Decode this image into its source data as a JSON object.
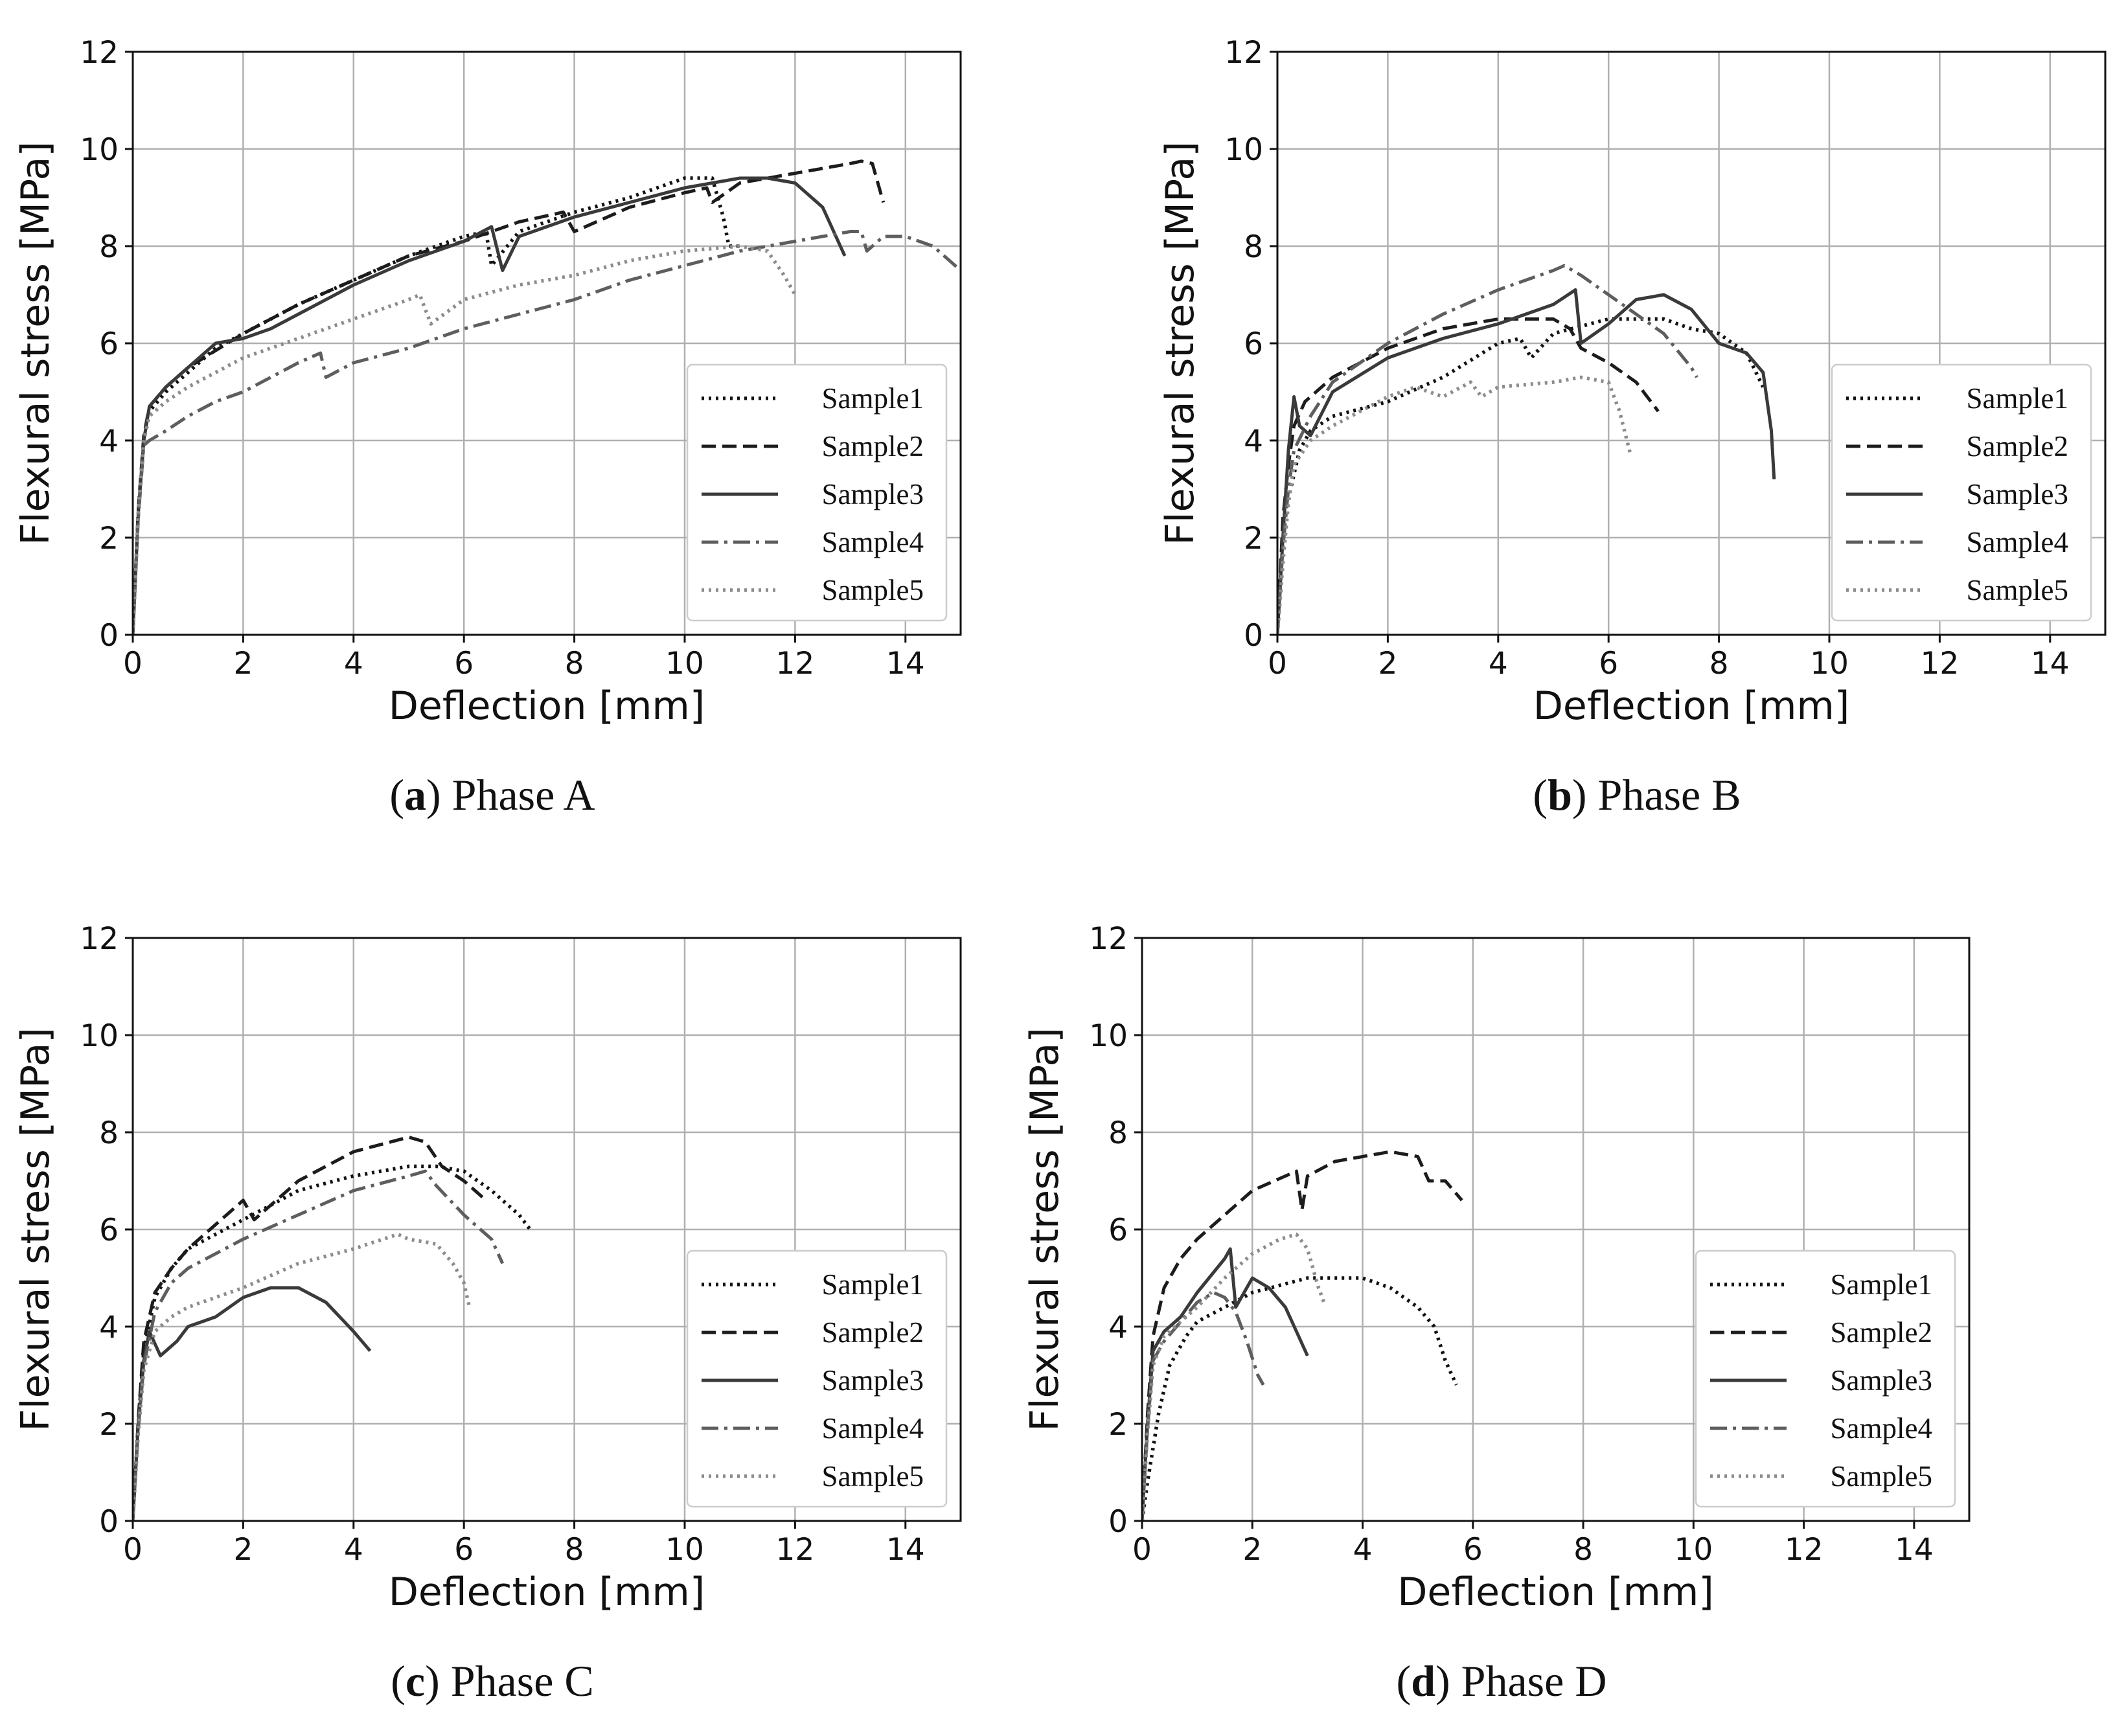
{
  "series_styles": [
    {
      "name": "Sample1",
      "color": "#111111",
      "dash": "dotted"
    },
    {
      "name": "Sample2",
      "color": "#1c1c1c",
      "dash": "dashed"
    },
    {
      "name": "Sample3",
      "color": "#3a3a3a",
      "dash": "solid"
    },
    {
      "name": "Sample4",
      "color": "#5e5e5e",
      "dash": "dashdot"
    },
    {
      "name": "Sample5",
      "color": "#8c8c8c",
      "dash": "dotted"
    }
  ],
  "chart_data": [
    {
      "type": "line",
      "caption_letter": "a",
      "caption_text": "Phase A",
      "xlabel": "Deflection [mm]",
      "ylabel": "Flexural stress [MPa]",
      "xlim": [
        0,
        15
      ],
      "ylim": [
        0,
        12
      ],
      "xticks": [
        0,
        2,
        4,
        6,
        8,
        10,
        12,
        14
      ],
      "yticks": [
        0,
        2,
        4,
        6,
        8,
        10,
        12
      ],
      "grid": true,
      "legend_position": "lower-right",
      "series": [
        {
          "name": "Sample1",
          "x": [
            0,
            0.1,
            0.2,
            0.3,
            0.6,
            1.0,
            1.5,
            2.0,
            3.0,
            4.0,
            5.0,
            6.0,
            6.4,
            6.5,
            7.0,
            8.0,
            9.0,
            10.0,
            10.5,
            10.7,
            10.8,
            11.0
          ],
          "y": [
            0,
            2.5,
            4.0,
            4.6,
            5.0,
            5.4,
            5.9,
            6.2,
            6.8,
            7.3,
            7.8,
            8.2,
            8.3,
            7.6,
            8.3,
            8.7,
            9.0,
            9.4,
            9.4,
            8.6,
            8.0,
            8.0
          ]
        },
        {
          "name": "Sample2",
          "x": [
            0,
            0.1,
            0.2,
            0.3,
            0.6,
            1.0,
            2.0,
            3.0,
            4.0,
            5.0,
            6.0,
            7.0,
            7.8,
            8.0,
            9.0,
            10.0,
            10.4,
            10.5,
            11.0,
            12.0,
            13.0,
            13.2,
            13.4,
            13.6
          ],
          "y": [
            0,
            2.6,
            4.1,
            4.7,
            5.1,
            5.5,
            6.2,
            6.8,
            7.3,
            7.8,
            8.1,
            8.5,
            8.7,
            8.3,
            8.8,
            9.1,
            9.2,
            8.9,
            9.3,
            9.5,
            9.7,
            9.75,
            9.7,
            8.9
          ]
        },
        {
          "name": "Sample3",
          "x": [
            0,
            0.1,
            0.2,
            0.3,
            0.6,
            1.0,
            1.5,
            2.0,
            2.5,
            3.0,
            4.0,
            5.0,
            6.0,
            6.5,
            6.7,
            7.0,
            8.0,
            9.0,
            10.0,
            11.0,
            11.5,
            12.0,
            12.5,
            12.9
          ],
          "y": [
            0,
            2.5,
            4.0,
            4.7,
            5.1,
            5.5,
            6.0,
            6.1,
            6.3,
            6.6,
            7.2,
            7.7,
            8.1,
            8.4,
            7.5,
            8.2,
            8.6,
            8.9,
            9.2,
            9.4,
            9.4,
            9.3,
            8.8,
            7.8
          ]
        },
        {
          "name": "Sample4",
          "x": [
            0,
            0.1,
            0.2,
            0.3,
            0.6,
            1.0,
            1.5,
            2.0,
            2.5,
            3.0,
            3.4,
            3.5,
            4.0,
            5.0,
            6.0,
            7.0,
            8.0,
            9.0,
            10.0,
            11.0,
            12.0,
            13.0,
            13.2,
            13.3,
            13.6,
            14.0,
            14.5,
            15.0
          ],
          "y": [
            0,
            2.4,
            3.9,
            4.0,
            4.2,
            4.5,
            4.8,
            5.0,
            5.3,
            5.6,
            5.8,
            5.3,
            5.6,
            5.9,
            6.3,
            6.6,
            6.9,
            7.3,
            7.6,
            7.9,
            8.1,
            8.3,
            8.3,
            7.9,
            8.2,
            8.2,
            8.0,
            7.5
          ]
        },
        {
          "name": "Sample5",
          "x": [
            0,
            0.1,
            0.2,
            0.3,
            0.6,
            1.0,
            2.0,
            3.0,
            4.0,
            5.0,
            5.2,
            5.4,
            6.0,
            7.0,
            8.0,
            9.0,
            10.0,
            11.0,
            11.5,
            11.8,
            12.0
          ],
          "y": [
            0,
            2.5,
            4.0,
            4.5,
            4.8,
            5.1,
            5.7,
            6.1,
            6.5,
            6.9,
            7.0,
            6.4,
            6.9,
            7.2,
            7.4,
            7.7,
            7.9,
            8.0,
            7.9,
            7.4,
            7.0
          ]
        }
      ]
    },
    {
      "type": "line",
      "caption_letter": "b",
      "caption_text": "Phase B",
      "xlabel": "Deflection [mm]",
      "ylabel": "Flexural stress [MPa]",
      "xlim": [
        0,
        15
      ],
      "ylim": [
        0,
        12
      ],
      "xticks": [
        0,
        2,
        4,
        6,
        8,
        10,
        12,
        14
      ],
      "yticks": [
        0,
        2,
        4,
        6,
        8,
        10,
        12
      ],
      "grid": true,
      "legend_position": "lower-right",
      "series": [
        {
          "name": "Sample1",
          "x": [
            0,
            0.1,
            0.2,
            0.4,
            0.6,
            1.0,
            2.0,
            3.0,
            4.0,
            4.4,
            4.6,
            5.0,
            6.0,
            7.0,
            7.5,
            8.0,
            8.5,
            8.8
          ],
          "y": [
            0,
            1.5,
            2.8,
            3.8,
            4.2,
            4.5,
            4.8,
            5.3,
            6.0,
            6.1,
            5.7,
            6.2,
            6.5,
            6.5,
            6.3,
            6.2,
            5.8,
            5.1
          ]
        },
        {
          "name": "Sample2",
          "x": [
            0,
            0.1,
            0.2,
            0.3,
            0.5,
            1.0,
            2.0,
            3.0,
            4.0,
            5.0,
            5.3,
            5.5,
            6.0,
            6.5,
            6.9
          ],
          "y": [
            0,
            2.4,
            3.5,
            4.3,
            4.8,
            5.3,
            5.9,
            6.3,
            6.5,
            6.5,
            6.3,
            5.9,
            5.6,
            5.2,
            4.6
          ]
        },
        {
          "name": "Sample3",
          "x": [
            0,
            0.1,
            0.2,
            0.3,
            0.4,
            0.6,
            1.0,
            2.0,
            3.0,
            4.0,
            5.0,
            5.4,
            5.5,
            6.0,
            6.5,
            7.0,
            7.5,
            8.0,
            8.5,
            8.8,
            8.95,
            9.0
          ],
          "y": [
            0,
            2.0,
            3.8,
            4.9,
            4.3,
            4.1,
            5.0,
            5.7,
            6.1,
            6.4,
            6.8,
            7.1,
            6.0,
            6.4,
            6.9,
            7.0,
            6.7,
            6.0,
            5.8,
            5.4,
            4.2,
            3.2
          ]
        },
        {
          "name": "Sample4",
          "x": [
            0,
            0.1,
            0.2,
            0.3,
            0.6,
            1.0,
            2.0,
            3.0,
            4.0,
            5.0,
            5.2,
            5.5,
            6.0,
            6.5,
            7.0,
            7.5,
            7.6
          ],
          "y": [
            0,
            1.8,
            3.0,
            3.8,
            4.5,
            5.2,
            6.0,
            6.6,
            7.1,
            7.5,
            7.6,
            7.4,
            7.0,
            6.6,
            6.2,
            5.5,
            5.3
          ]
        },
        {
          "name": "Sample5",
          "x": [
            0,
            0.1,
            0.2,
            0.3,
            0.6,
            1.0,
            2.0,
            2.5,
            3.0,
            3.5,
            3.7,
            4.0,
            5.0,
            5.5,
            6.0,
            6.2,
            6.4
          ],
          "y": [
            0,
            1.5,
            2.7,
            3.5,
            4.0,
            4.3,
            4.9,
            5.1,
            4.9,
            5.2,
            4.9,
            5.1,
            5.2,
            5.3,
            5.2,
            4.6,
            3.7
          ]
        }
      ]
    },
    {
      "type": "line",
      "caption_letter": "c",
      "caption_text": "Phase C",
      "xlabel": "Deflection [mm]",
      "ylabel": "Flexural stress [MPa]",
      "xlim": [
        0,
        15
      ],
      "ylim": [
        0,
        12
      ],
      "xticks": [
        0,
        2,
        4,
        6,
        8,
        10,
        12,
        14
      ],
      "yticks": [
        0,
        2,
        4,
        6,
        8,
        10,
        12
      ],
      "grid": true,
      "legend_position": "lower-right",
      "series": [
        {
          "name": "Sample1",
          "x": [
            0,
            0.1,
            0.2,
            0.4,
            0.7,
            1.0,
            2.0,
            3.0,
            4.0,
            5.0,
            5.5,
            6.0,
            6.5,
            7.0,
            7.2
          ],
          "y": [
            0,
            2.0,
            3.5,
            4.6,
            5.2,
            5.6,
            6.2,
            6.8,
            7.1,
            7.3,
            7.3,
            7.2,
            6.8,
            6.3,
            6.0
          ]
        },
        {
          "name": "Sample2",
          "x": [
            0,
            0.1,
            0.2,
            0.4,
            0.7,
            1.0,
            2.0,
            2.2,
            3.0,
            4.0,
            5.0,
            5.3,
            5.6,
            6.0,
            6.4
          ],
          "y": [
            0,
            2.1,
            3.7,
            4.7,
            5.2,
            5.6,
            6.6,
            6.2,
            7.0,
            7.6,
            7.9,
            7.8,
            7.3,
            7.0,
            6.6
          ]
        },
        {
          "name": "Sample3",
          "x": [
            0,
            0.1,
            0.2,
            0.3,
            0.5,
            0.8,
            1.0,
            1.5,
            2.0,
            2.5,
            3.0,
            3.5,
            4.0,
            4.3
          ],
          "y": [
            0,
            2.0,
            3.3,
            3.9,
            3.4,
            3.7,
            4.0,
            4.2,
            4.6,
            4.8,
            4.8,
            4.5,
            3.9,
            3.5
          ]
        },
        {
          "name": "Sample4",
          "x": [
            0,
            0.1,
            0.2,
            0.4,
            0.7,
            1.0,
            2.0,
            3.0,
            4.0,
            5.0,
            5.3,
            5.5,
            6.0,
            6.5,
            6.7
          ],
          "y": [
            0,
            1.9,
            3.2,
            4.3,
            4.9,
            5.2,
            5.8,
            6.3,
            6.8,
            7.1,
            7.2,
            6.9,
            6.3,
            5.8,
            5.3
          ]
        },
        {
          "name": "Sample5",
          "x": [
            0,
            0.1,
            0.2,
            0.4,
            0.7,
            1.0,
            2.0,
            3.0,
            4.0,
            4.8,
            5.0,
            5.5,
            5.8,
            6.0,
            6.1
          ],
          "y": [
            0,
            1.8,
            3.1,
            3.9,
            4.2,
            4.4,
            4.8,
            5.3,
            5.6,
            5.9,
            5.8,
            5.7,
            5.3,
            4.9,
            4.4
          ]
        }
      ]
    },
    {
      "type": "line",
      "caption_letter": "d",
      "caption_text": "Phase D",
      "xlabel": "Deflection [mm]",
      "ylabel": "Flexural stress [MPa]",
      "xlim": [
        0,
        15
      ],
      "ylim": [
        0,
        12
      ],
      "xticks": [
        0,
        2,
        4,
        6,
        8,
        10,
        12,
        14
      ],
      "yticks": [
        0,
        2,
        4,
        6,
        8,
        10,
        12
      ],
      "grid": true,
      "legend_position": "lower-right",
      "series": [
        {
          "name": "Sample1",
          "x": [
            0,
            0.1,
            0.3,
            0.5,
            0.8,
            1.0,
            2.0,
            3.0,
            4.0,
            4.5,
            5.0,
            5.3,
            5.5,
            5.7
          ],
          "y": [
            0,
            0.8,
            2.2,
            3.2,
            3.8,
            4.1,
            4.7,
            5.0,
            5.0,
            4.8,
            4.4,
            4.0,
            3.3,
            2.8
          ]
        },
        {
          "name": "Sample2",
          "x": [
            0,
            0.1,
            0.2,
            0.4,
            0.7,
            1.0,
            2.0,
            2.8,
            2.9,
            3.0,
            3.5,
            4.0,
            4.5,
            5.0,
            5.2,
            5.5,
            5.8
          ],
          "y": [
            0,
            2.2,
            3.8,
            4.8,
            5.4,
            5.8,
            6.8,
            7.2,
            6.4,
            7.1,
            7.4,
            7.5,
            7.6,
            7.5,
            7.0,
            7.0,
            6.6
          ]
        },
        {
          "name": "Sample3",
          "x": [
            0,
            0.1,
            0.2,
            0.4,
            0.7,
            1.0,
            1.5,
            1.6,
            1.7,
            2.0,
            2.3,
            2.6,
            2.8,
            3.0
          ],
          "y": [
            0,
            2.0,
            3.5,
            3.9,
            4.2,
            4.7,
            5.4,
            5.6,
            4.4,
            5.0,
            4.8,
            4.4,
            3.9,
            3.4
          ]
        },
        {
          "name": "Sample4",
          "x": [
            0,
            0.1,
            0.2,
            0.4,
            0.7,
            1.0,
            1.3,
            1.5,
            1.7,
            1.9,
            2.1,
            2.2
          ],
          "y": [
            0,
            1.9,
            3.3,
            3.7,
            4.1,
            4.5,
            4.7,
            4.6,
            4.3,
            3.7,
            3.0,
            2.8
          ]
        },
        {
          "name": "Sample5",
          "x": [
            0,
            0.1,
            0.2,
            0.4,
            0.7,
            1.0,
            1.5,
            2.0,
            2.5,
            2.8,
            3.0,
            3.2,
            3.3
          ],
          "y": [
            0,
            1.8,
            3.2,
            3.8,
            4.1,
            4.4,
            5.0,
            5.5,
            5.8,
            5.9,
            5.6,
            4.8,
            4.5
          ]
        }
      ]
    }
  ]
}
